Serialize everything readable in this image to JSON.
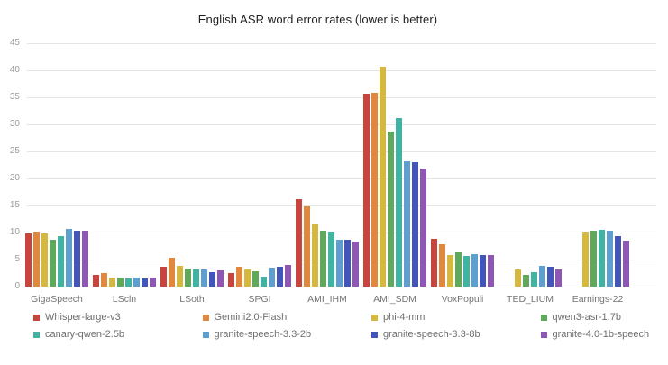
{
  "chart_data": {
    "type": "bar",
    "title": "English ASR word error rates (lower is better)",
    "categories": [
      "GigaSpeech",
      "LScln",
      "LSoth",
      "SPGI",
      "AMI_IHM",
      "AMI_SDM",
      "VoxPopuli",
      "TED_LIUM",
      "Earnings-22"
    ],
    "series": [
      {
        "name": "Whisper-large-v3",
        "color": "#c8443e",
        "values": [
          9.8,
          2.2,
          3.6,
          2.5,
          16.1,
          35.6,
          8.8,
          null,
          null
        ]
      },
      {
        "name": "Gemini2.0-Flash",
        "color": "#e1883f",
        "values": [
          10.2,
          2.5,
          5.4,
          3.7,
          14.8,
          35.8,
          7.8,
          null,
          null
        ]
      },
      {
        "name": "phi-4-mm",
        "color": "#d4b83f",
        "values": [
          9.9,
          1.7,
          3.9,
          3.1,
          11.6,
          40.7,
          5.9,
          3.1,
          10.1
        ]
      },
      {
        "name": "qwen3-asr-1.7b",
        "color": "#5fa85c",
        "values": [
          8.7,
          1.6,
          3.4,
          2.8,
          10.4,
          28.6,
          6.4,
          2.2,
          10.3
        ]
      },
      {
        "name": "canary-qwen-2.5b",
        "color": "#41b3a3",
        "values": [
          9.3,
          1.5,
          3.2,
          1.9,
          10.1,
          31.1,
          5.6,
          2.6,
          10.5
        ]
      },
      {
        "name": "granite-speech-3.3-2b",
        "color": "#5f9fd0",
        "values": [
          10.6,
          1.6,
          3.2,
          3.5,
          8.7,
          23.2,
          6.0,
          3.9,
          10.4
        ]
      },
      {
        "name": "granite-speech-3.3-8b",
        "color": "#4355b9",
        "values": [
          10.3,
          1.5,
          2.7,
          3.6,
          8.6,
          23.0,
          5.8,
          3.6,
          9.4
        ]
      },
      {
        "name": "granite-4.0-1b-speech",
        "color": "#8d57b3",
        "values": [
          10.3,
          1.7,
          3.0,
          4.0,
          8.3,
          21.9,
          5.8,
          3.2,
          8.5
        ]
      }
    ],
    "ylim": [
      0,
      45
    ],
    "yticks": [
      0,
      5,
      10,
      15,
      20,
      25,
      30,
      35,
      40,
      45
    ],
    "grid": true,
    "legend_position": "bottom"
  }
}
